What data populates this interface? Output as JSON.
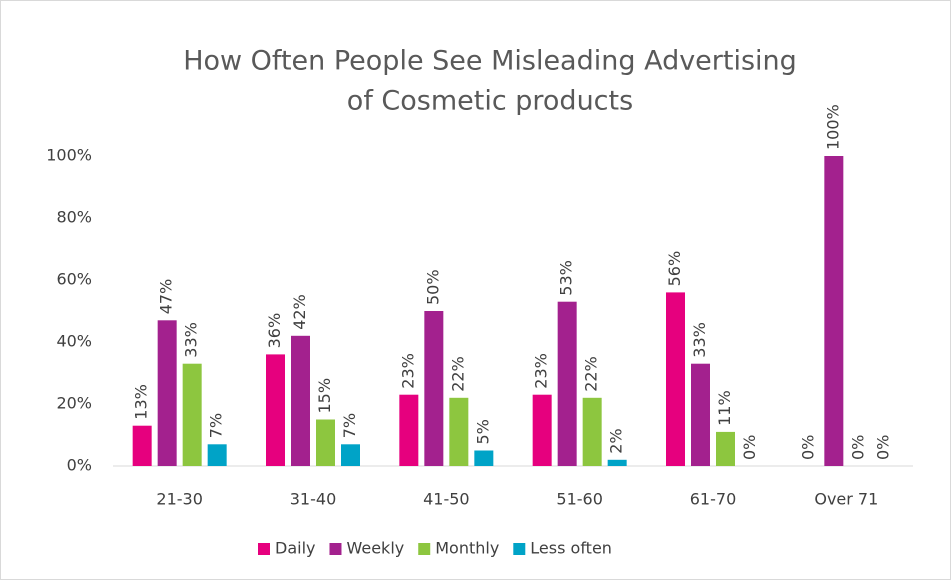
{
  "chart_data": {
    "type": "bar",
    "title": [
      "How Often People See Misleading Advertising",
      "of Cosmetic products"
    ],
    "categories": [
      "21-30",
      "31-40",
      "41-50",
      "51-60",
      "61-70",
      "Over 71"
    ],
    "series": [
      {
        "name": "Daily",
        "color": "#e6007e",
        "values": [
          13,
          36,
          23,
          23,
          56,
          0
        ],
        "value_labels": [
          "13%",
          "36%",
          "23%",
          "23%",
          "56%",
          "0%"
        ]
      },
      {
        "name": "Weekly",
        "color": "#a3218e",
        "values": [
          47,
          42,
          50,
          53,
          33,
          100
        ],
        "value_labels": [
          "47%",
          "42%",
          "50%",
          "53%",
          "33%",
          "100%"
        ]
      },
      {
        "name": "Monthly",
        "color": "#8dc63f",
        "values": [
          33,
          15,
          22,
          22,
          11,
          0
        ],
        "value_labels": [
          "33%",
          "15%",
          "22%",
          "22%",
          "11%",
          "0%"
        ]
      },
      {
        "name": "Less often",
        "color": "#00a3c7",
        "values": [
          7,
          7,
          5,
          2,
          0,
          0
        ],
        "value_labels": [
          "7%",
          "7%",
          "5%",
          "2%",
          "0%",
          "0%"
        ]
      }
    ],
    "ylim": [
      0,
      100
    ],
    "yticks": [
      {
        "value": 0,
        "label": "0%"
      },
      {
        "value": 20,
        "label": "20%"
      },
      {
        "value": 40,
        "label": "40%"
      },
      {
        "value": 60,
        "label": "60%"
      },
      {
        "value": 80,
        "label": "80%"
      },
      {
        "value": 100,
        "label": "100%"
      }
    ],
    "grid": false,
    "legend": "bottom"
  }
}
